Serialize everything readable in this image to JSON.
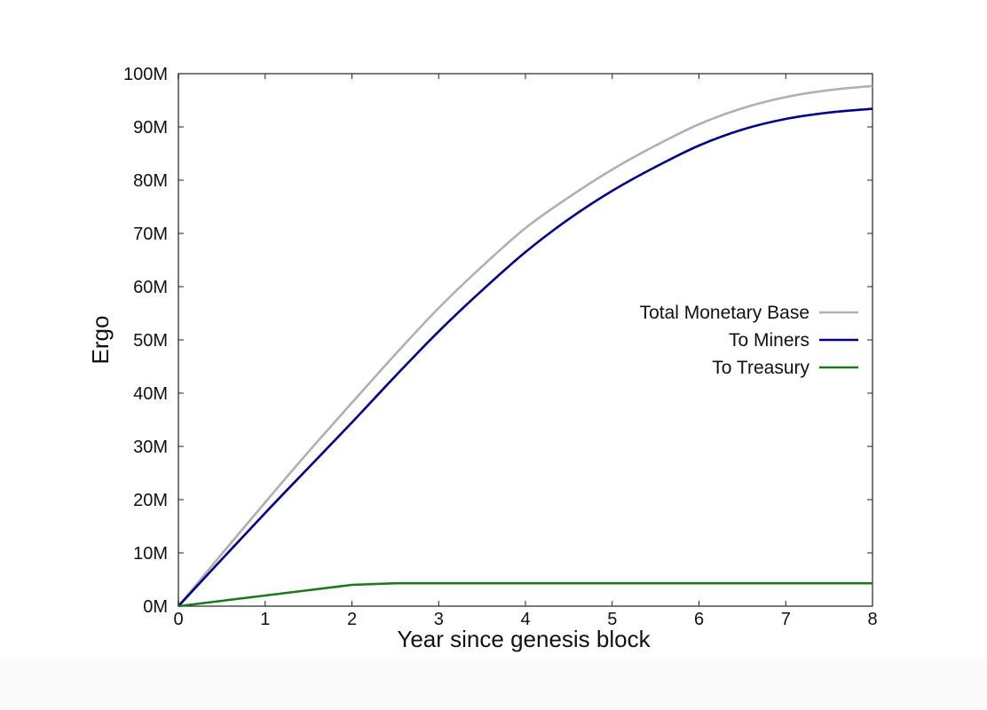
{
  "chart_data": {
    "type": "line",
    "title": "",
    "xlabel": "Year since genesis block",
    "ylabel": "Ergo",
    "xlim": [
      0,
      8
    ],
    "ylim": [
      0,
      100
    ],
    "y_unit": "M",
    "xticks": [
      "0",
      "1",
      "2",
      "3",
      "4",
      "5",
      "6",
      "7",
      "8"
    ],
    "yticks": [
      "0M",
      "10M",
      "20M",
      "30M",
      "40M",
      "50M",
      "60M",
      "70M",
      "80M",
      "90M",
      "100M"
    ],
    "grid": false,
    "legend_position": "center right",
    "x": [
      0,
      0.5,
      1,
      1.5,
      2,
      2.5,
      3,
      3.5,
      4,
      4.5,
      5,
      5.5,
      6,
      6.5,
      7,
      7.5,
      8
    ],
    "series": [
      {
        "name": "Total Monetary Base",
        "color": "#b0b0b0",
        "values": [
          0,
          9.8,
          19.5,
          29,
          38.2,
          47.3,
          56,
          63.8,
          71,
          76.8,
          82,
          86.5,
          90.5,
          93.5,
          95.6,
          96.9,
          97.7
        ]
      },
      {
        "name": "To Miners",
        "color": "#00008b",
        "values": [
          0,
          8.8,
          17.5,
          26,
          34.5,
          43.2,
          51.6,
          59.3,
          66.5,
          72.7,
          78,
          82.5,
          86.5,
          89.5,
          91.5,
          92.7,
          93.4
        ]
      },
      {
        "name": "To Treasury",
        "color": "#1a7a1a",
        "values": [
          0,
          1.0,
          2.0,
          3.0,
          4.0,
          4.3,
          4.3,
          4.3,
          4.3,
          4.3,
          4.3,
          4.3,
          4.3,
          4.3,
          4.3,
          4.3,
          4.3
        ]
      }
    ]
  }
}
